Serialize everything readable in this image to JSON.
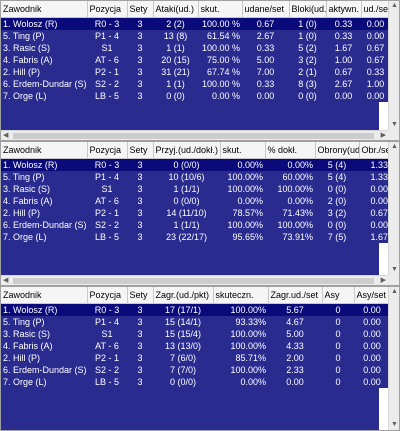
{
  "tables": [
    {
      "columns": [
        "Zawodnik",
        "Pozycja",
        "Sety",
        "Ataki(ud.)",
        "skut.",
        "udane/set",
        "Bloki(ud.)",
        "aktywn.",
        "ud./set"
      ],
      "rows": [
        [
          "1. Wolosz (R)",
          "R0 - 3",
          "3",
          "2 (2)",
          "100.00 %",
          "0.67",
          "1 (0)",
          "0.33",
          "0.00"
        ],
        [
          "5. Ting (P)",
          "P1 - 4",
          "3",
          "13 (8)",
          "61.54 %",
          "2.67",
          "1 (0)",
          "0.33",
          "0.00"
        ],
        [
          "3. Rasic (S)",
          "S1",
          "3",
          "1 (1)",
          "100.00 %",
          "0.33",
          "5 (2)",
          "1.67",
          "0.67"
        ],
        [
          "4. Fabris (A)",
          "AT - 6",
          "3",
          "20 (15)",
          "75.00 %",
          "5.00",
          "3 (2)",
          "1.00",
          "0.67"
        ],
        [
          "2. Hill (P)",
          "P2 - 1",
          "3",
          "31 (21)",
          "67.74 %",
          "7.00",
          "2 (1)",
          "0.67",
          "0.33"
        ],
        [
          "6. Erdem-Dundar (S)",
          "S2 - 2",
          "3",
          "1 (1)",
          "100.00 %",
          "0.33",
          "8 (3)",
          "2.67",
          "1.00"
        ],
        [
          "7. Orge (L)",
          "LB - 5",
          "3",
          "0 (0)",
          "0.00 %",
          "0.00",
          "0 (0)",
          "0.00",
          "0.00"
        ]
      ]
    },
    {
      "columns": [
        "Zawodnik",
        "Pozycja",
        "Sety",
        "Przyj.(ud./dokł.)",
        "skut.",
        "% dokł.",
        "Obrony(ud.)",
        "Obr./set"
      ],
      "rows": [
        [
          "1. Wolosz (R)",
          "R0 - 3",
          "3",
          "0 (0/0)",
          "0.00%",
          "0.00%",
          "5 (4)",
          "1.33"
        ],
        [
          "5. Ting (P)",
          "P1 - 4",
          "3",
          "10 (10/6)",
          "100.00%",
          "60.00%",
          "5 (4)",
          "1.33"
        ],
        [
          "3. Rasic (S)",
          "S1",
          "3",
          "1 (1/1)",
          "100.00%",
          "100.00%",
          "0 (0)",
          "0.00"
        ],
        [
          "4. Fabris (A)",
          "AT - 6",
          "3",
          "0 (0/0)",
          "0.00%",
          "0.00%",
          "2 (0)",
          "0.00"
        ],
        [
          "2. Hill (P)",
          "P2 - 1",
          "3",
          "14 (11/10)",
          "78.57%",
          "71.43%",
          "3 (2)",
          "0.67"
        ],
        [
          "6. Erdem-Dundar (S)",
          "S2 - 2",
          "3",
          "1 (1/1)",
          "100.00%",
          "100.00%",
          "0 (0)",
          "0.00"
        ],
        [
          "7. Orge (L)",
          "LB - 5",
          "3",
          "23 (22/17)",
          "95.65%",
          "73.91%",
          "7 (5)",
          "1.67"
        ]
      ]
    },
    {
      "columns": [
        "Zawodnik",
        "Pozycja",
        "Sety",
        "Zagr.(ud./pkt)",
        "skuteczn.",
        "Zagr.ud./set",
        "Asy",
        "Asy/set"
      ],
      "rows": [
        [
          "1. Wolosz (R)",
          "R0 - 3",
          "3",
          "17 (17/1)",
          "100.00%",
          "5.67",
          "0",
          "0.00"
        ],
        [
          "5. Ting (P)",
          "P1 - 4",
          "3",
          "15 (14/1)",
          "93.33%",
          "4.67",
          "0",
          "0.00"
        ],
        [
          "3. Rasic (S)",
          "S1",
          "3",
          "15 (15/4)",
          "100.00%",
          "5.00",
          "0",
          "0.00"
        ],
        [
          "4. Fabris (A)",
          "AT - 6",
          "3",
          "13 (13/0)",
          "100.00%",
          "4.33",
          "0",
          "0.00"
        ],
        [
          "2. Hill (P)",
          "P2 - 1",
          "3",
          "7 (6/0)",
          "85.71%",
          "2.00",
          "0",
          "0.00"
        ],
        [
          "6. Erdem-Dundar (S)",
          "S2 - 2",
          "3",
          "7 (7/0)",
          "100.00%",
          "2.33",
          "0",
          "0.00"
        ],
        [
          "7. Orge (L)",
          "LB - 5",
          "3",
          "0 (0/0)",
          "0.00%",
          "0.00",
          "0",
          "0.00"
        ]
      ]
    }
  ],
  "icons": {
    "scroll_up": "▲",
    "scroll_down": "▼",
    "scroll_left": "◀",
    "scroll_right": "▶"
  },
  "colors": {
    "row_bg": "#2a2b8f",
    "row_text": "#ffffff",
    "header_bg": "#f5f5f5"
  }
}
